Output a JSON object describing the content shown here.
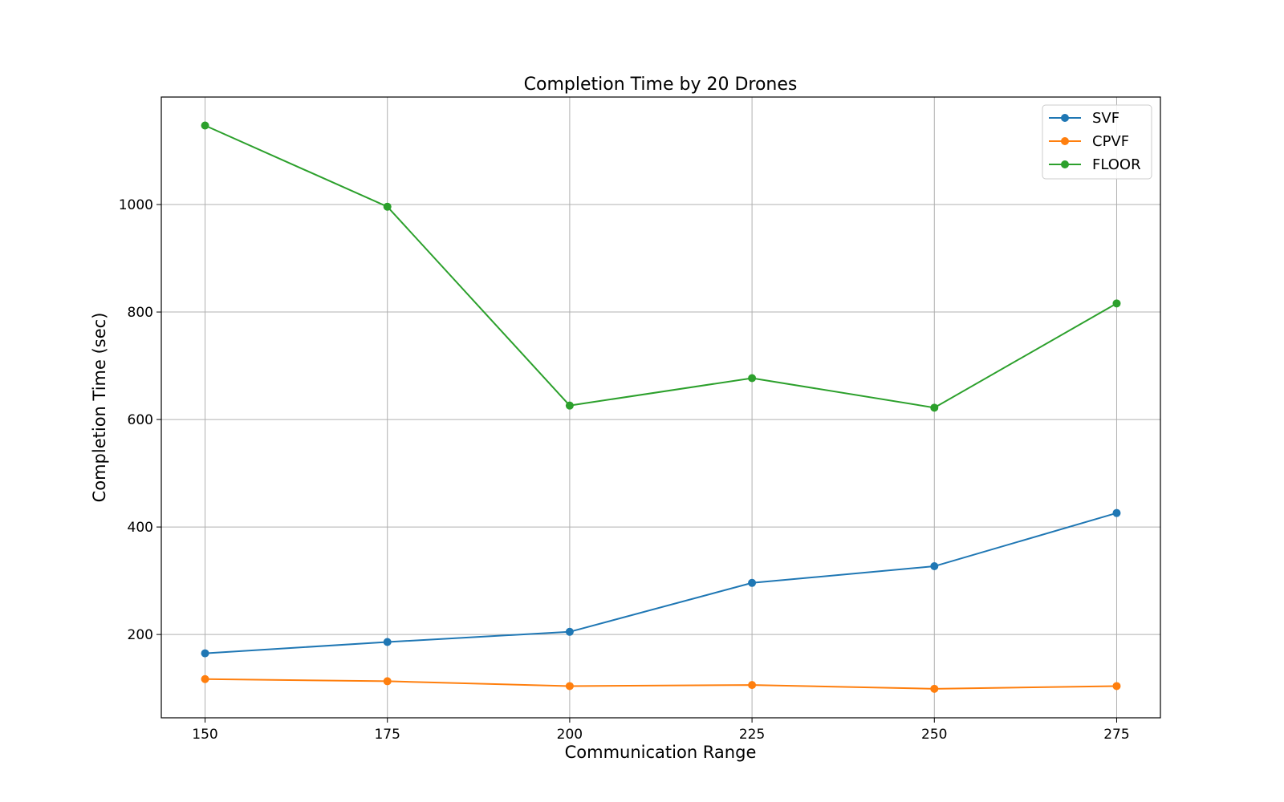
{
  "chart_data": {
    "type": "line",
    "title": "Completion Time by 20 Drones",
    "xlabel": "Communication Range",
    "ylabel": "Completion Time (sec)",
    "x": [
      150,
      175,
      200,
      225,
      250,
      275
    ],
    "xticks": [
      150,
      175,
      200,
      225,
      250,
      275
    ],
    "yticks": [
      200,
      400,
      600,
      800,
      1000
    ],
    "xlim": [
      144,
      281
    ],
    "ylim": [
      45,
      1200
    ],
    "grid": true,
    "legend_position": "top-right",
    "series": [
      {
        "name": "SVF",
        "color": "#1f77b4",
        "values": [
          165,
          186,
          205,
          296,
          327,
          426
        ]
      },
      {
        "name": "CPVF",
        "color": "#ff7f0e",
        "values": [
          117,
          113,
          104,
          106,
          99,
          104
        ]
      },
      {
        "name": "FLOOR",
        "color": "#2ca02c",
        "values": [
          1147,
          996,
          626,
          677,
          622,
          816
        ]
      }
    ]
  }
}
